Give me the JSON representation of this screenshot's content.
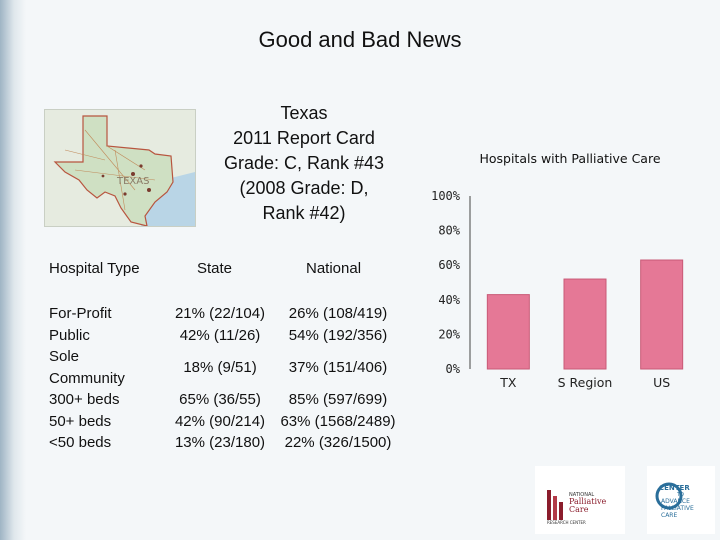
{
  "slide": {
    "title": "Good and Bad News",
    "report_lines": [
      "Texas",
      "2011 Report Card",
      "Grade: C, Rank #43",
      "(2008 Grade: D,",
      "Rank #42)"
    ]
  },
  "map": {
    "label": "TEXAS"
  },
  "table": {
    "headers": {
      "type": "Hospital Type",
      "state": "State",
      "national": "National"
    },
    "rows": [
      {
        "type": "For-Profit",
        "state": "21% (22/104)",
        "national": "26% (108/419)"
      },
      {
        "type": "Public",
        "state": "42% (11/26)",
        "national": "54% (192/356)"
      },
      {
        "type": "Sole Community",
        "state": "18% (9/51)",
        "national": "37% (151/406)"
      },
      {
        "type": "300+ beds",
        "state": "65% (36/55)",
        "national": "85% (597/699)"
      },
      {
        "type": "50+ beds",
        "state": "42% (90/214)",
        "national": "63% (1568/2489)"
      },
      {
        "type": "<50 beds",
        "state": "13% (23/180)",
        "national": "22% (326/1500)"
      }
    ]
  },
  "chart_data": {
    "type": "bar",
    "title": "Hospitals with Palliative Care",
    "categories": [
      "TX",
      "S Region",
      "US"
    ],
    "values": [
      43,
      52,
      63
    ],
    "ylim": [
      0,
      100
    ],
    "yticks": [
      "0%",
      "20%",
      "40%",
      "60%",
      "80%",
      "100%"
    ],
    "bar_color": "#e57896",
    "grid": false
  },
  "logos": {
    "npcrc": {
      "line1": "NATIONAL",
      "line2": "Palliative",
      "line3": "Care",
      "line4": "RESEARCH CENTER"
    },
    "capc": {
      "line1": "CENTER",
      "line2": "TO",
      "line3": "ADVANCE",
      "line4": "PALLIATIVE",
      "line5": "CARE"
    }
  }
}
